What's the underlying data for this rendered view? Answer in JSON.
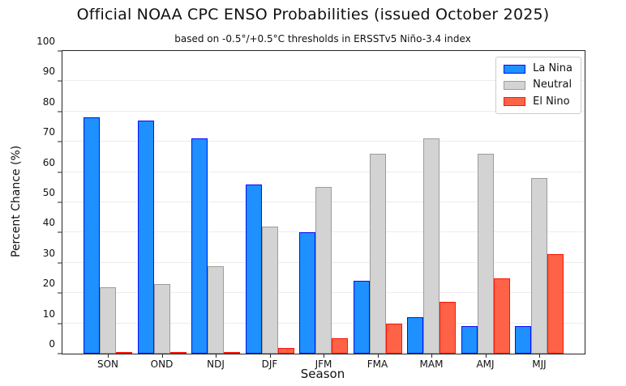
{
  "chart_data": {
    "type": "bar",
    "title": "Official NOAA CPC ENSO Probabilities (issued October 2025)",
    "subtitle": "based on -0.5°/+0.5°C thresholds in ERSSTv5 Niño-3.4 index",
    "xlabel": "Season",
    "ylabel": "Percent Chance (%)",
    "ylim": [
      0,
      100
    ],
    "yticks": [
      0,
      10,
      20,
      30,
      40,
      50,
      60,
      70,
      80,
      90,
      100
    ],
    "grid": true,
    "legend_position": "upper right",
    "categories": [
      "SON",
      "OND",
      "NDJ",
      "DJF",
      "JFM",
      "FMA",
      "MAM",
      "AMJ",
      "MJJ"
    ],
    "series": [
      {
        "name": "La Nina",
        "fill": "#1E90FF",
        "edge": "#0A0AFF",
        "values": [
          78,
          77,
          71,
          56,
          40,
          24,
          12,
          9,
          9
        ]
      },
      {
        "name": "Neutral",
        "fill": "#D3D3D3",
        "edge": "#9C9C9C",
        "values": [
          22,
          23,
          29,
          42,
          55,
          66,
          71,
          66,
          58
        ]
      },
      {
        "name": "El Nino",
        "fill": "#FF6347",
        "edge": "#FA1508",
        "values": [
          0,
          0,
          0,
          2,
          5,
          10,
          17,
          25,
          33
        ]
      }
    ]
  }
}
